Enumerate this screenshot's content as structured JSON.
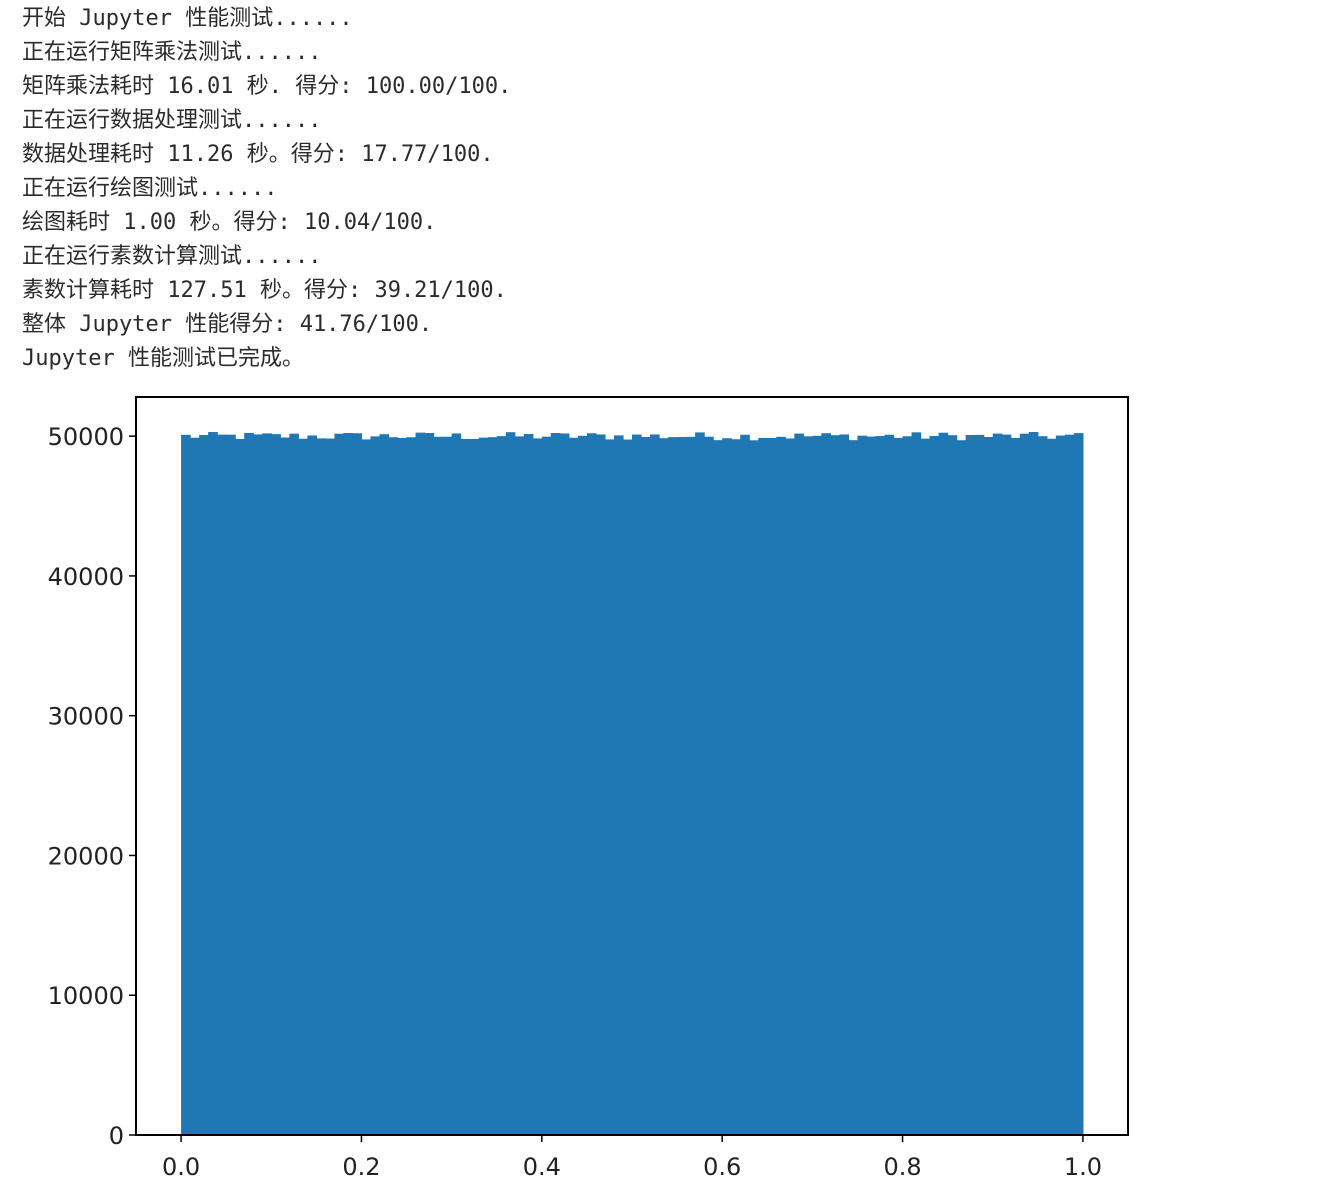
{
  "output_lines": [
    "开始 Jupyter 性能测试......",
    "正在运行矩阵乘法测试......",
    "矩阵乘法耗时 16.01 秒. 得分: 100.00/100.",
    "正在运行数据处理测试......",
    "数据处理耗时 11.26 秒。得分: 17.77/100.",
    "正在运行绘图测试......",
    "绘图耗时 1.00 秒。得分: 10.04/100.",
    "正在运行素数计算测试......",
    "素数计算耗时 127.51 秒。得分: 39.21/100.",
    "整体 Jupyter 性能得分: 41.76/100.",
    "Jupyter 性能测试已完成。"
  ],
  "chart_data": {
    "type": "bar",
    "subtype": "histogram",
    "title": "",
    "xlabel": "",
    "ylabel": "",
    "xlim": [
      -0.05,
      1.05
    ],
    "ylim": [
      0,
      52800
    ],
    "bin_range": [
      0.0,
      1.0
    ],
    "bin_count": 100,
    "approx_bin_value": 50000,
    "xticks": [
      0.0,
      0.2,
      0.4,
      0.6,
      0.8,
      1.0
    ],
    "xtick_labels": [
      "0.0",
      "0.2",
      "0.4",
      "0.6",
      "0.8",
      "1.0"
    ],
    "yticks": [
      0,
      10000,
      20000,
      30000,
      40000,
      50000
    ],
    "ytick_labels": [
      "0",
      "10000",
      "20000",
      "30000",
      "40000",
      "50000"
    ],
    "bar_color": "#1f77b4",
    "grid": false
  }
}
